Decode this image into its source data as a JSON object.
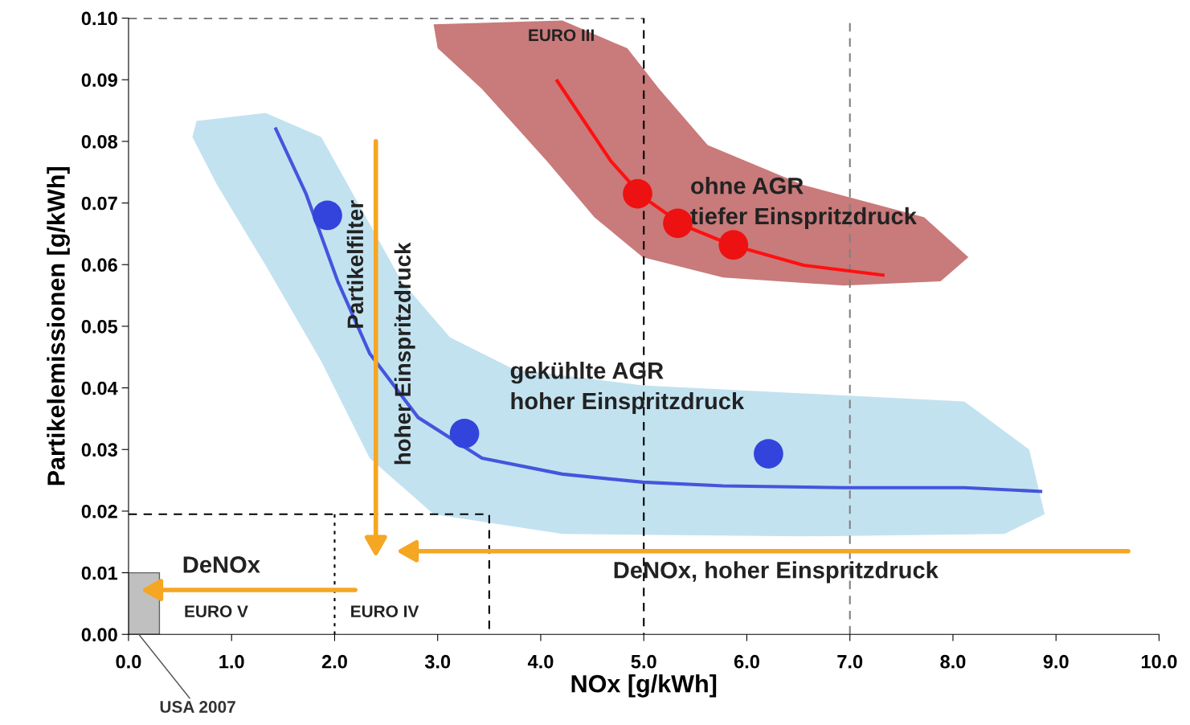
{
  "chart_data": {
    "type": "line",
    "xlabel": "NOx [g/kWh]",
    "ylabel": "Partikelemissionen [g/kWh]",
    "xlim": [
      0,
      10
    ],
    "ylim": [
      0,
      0.1
    ],
    "xticks": [
      {
        "value": 0,
        "label": "0.0"
      },
      {
        "value": 1,
        "label": "1.0"
      },
      {
        "value": 2,
        "label": "2.0"
      },
      {
        "value": 3,
        "label": "3.0"
      },
      {
        "value": 4,
        "label": "4.0"
      },
      {
        "value": 5,
        "label": "5.0"
      },
      {
        "value": 6,
        "label": "6.0"
      },
      {
        "value": 7,
        "label": "7.0"
      },
      {
        "value": 8,
        "label": "8.0"
      },
      {
        "value": 9,
        "label": "9.0"
      },
      {
        "value": 10,
        "label": "10.0"
      }
    ],
    "yticks": [
      {
        "value": 0,
        "label": "0.00"
      },
      {
        "value": 0.01,
        "label": "0.01"
      },
      {
        "value": 0.02,
        "label": "0.02"
      },
      {
        "value": 0.03,
        "label": "0.03"
      },
      {
        "value": 0.04,
        "label": "0.04"
      },
      {
        "value": 0.05,
        "label": "0.05"
      },
      {
        "value": 0.06,
        "label": "0.06"
      },
      {
        "value": 0.07,
        "label": "0.07"
      },
      {
        "value": 0.08,
        "label": "0.08"
      },
      {
        "value": 0.09,
        "label": "0.09"
      },
      {
        "value": 0.1,
        "label": "0.10"
      }
    ],
    "grid": false,
    "legend": false,
    "series": [
      {
        "type": "area",
        "color": "#c0c0c0",
        "x": [
          0,
          0.3
        ],
        "values": [
          0.01,
          0.01
        ]
      },
      {
        "color": "#000000",
        "line_style": "dashed",
        "x": [
          0,
          5,
          5
        ],
        "values": [
          0.1,
          0.1,
          0
        ]
      },
      {
        "color": "#000000",
        "line_style": "dashed",
        "x": [
          0,
          3.5,
          3.5
        ],
        "values": [
          0.0195,
          0.0195,
          0
        ]
      },
      {
        "color": "#000000",
        "line_style": "dotted",
        "x": [
          2,
          2
        ],
        "values": [
          0.0195,
          0
        ]
      },
      {
        "color": "#4455dd",
        "x": [
          1.43,
          1.72,
          2.03,
          2.34,
          2.81,
          3.43,
          4.21,
          4.99,
          5.77,
          6.94,
          8.11,
          8.85
        ],
        "values": [
          0.082,
          0.0716,
          0.0573,
          0.0456,
          0.0352,
          0.0286,
          0.026,
          0.0247,
          0.0241,
          0.0238,
          0.0238,
          0.0232
        ]
      },
      {
        "type": "scatter",
        "color": "#3344dd",
        "marker": "circle",
        "x": [
          1.93,
          3.26,
          6.21
        ],
        "values": [
          0.068,
          0.0326,
          0.0293
        ]
      },
      {
        "color": "#ff1010",
        "x": [
          4.16,
          4.68,
          4.99,
          5.38,
          5.85,
          6.55,
          7.32
        ],
        "values": [
          0.0898,
          0.0768,
          0.071,
          0.0664,
          0.0632,
          0.0599,
          0.0583
        ]
      },
      {
        "type": "scatter",
        "color": "#ee1111",
        "marker": "circle",
        "x": [
          4.94,
          5.33,
          5.87
        ],
        "values": [
          0.0715,
          0.0667,
          0.0632
        ]
      }
    ],
    "ref_lines": [
      {
        "axis": "x",
        "value": 7.0,
        "color": "#808080",
        "line_style": "dashed"
      }
    ],
    "annotations": [
      "EURO III",
      "ohne AGR\ntiefer Einspritzdruck",
      "gekühlte AGR\nhoher Einspritzdruck",
      "Partikelfilter",
      "hoher Einspritzdruck",
      "DeNOx",
      "DeNOx, hoher Einspritzdruck",
      "EURO V",
      "EURO IV",
      {
        "text": "USA 2007",
        "x": 0.1,
        "y": 0.0
      }
    ]
  }
}
